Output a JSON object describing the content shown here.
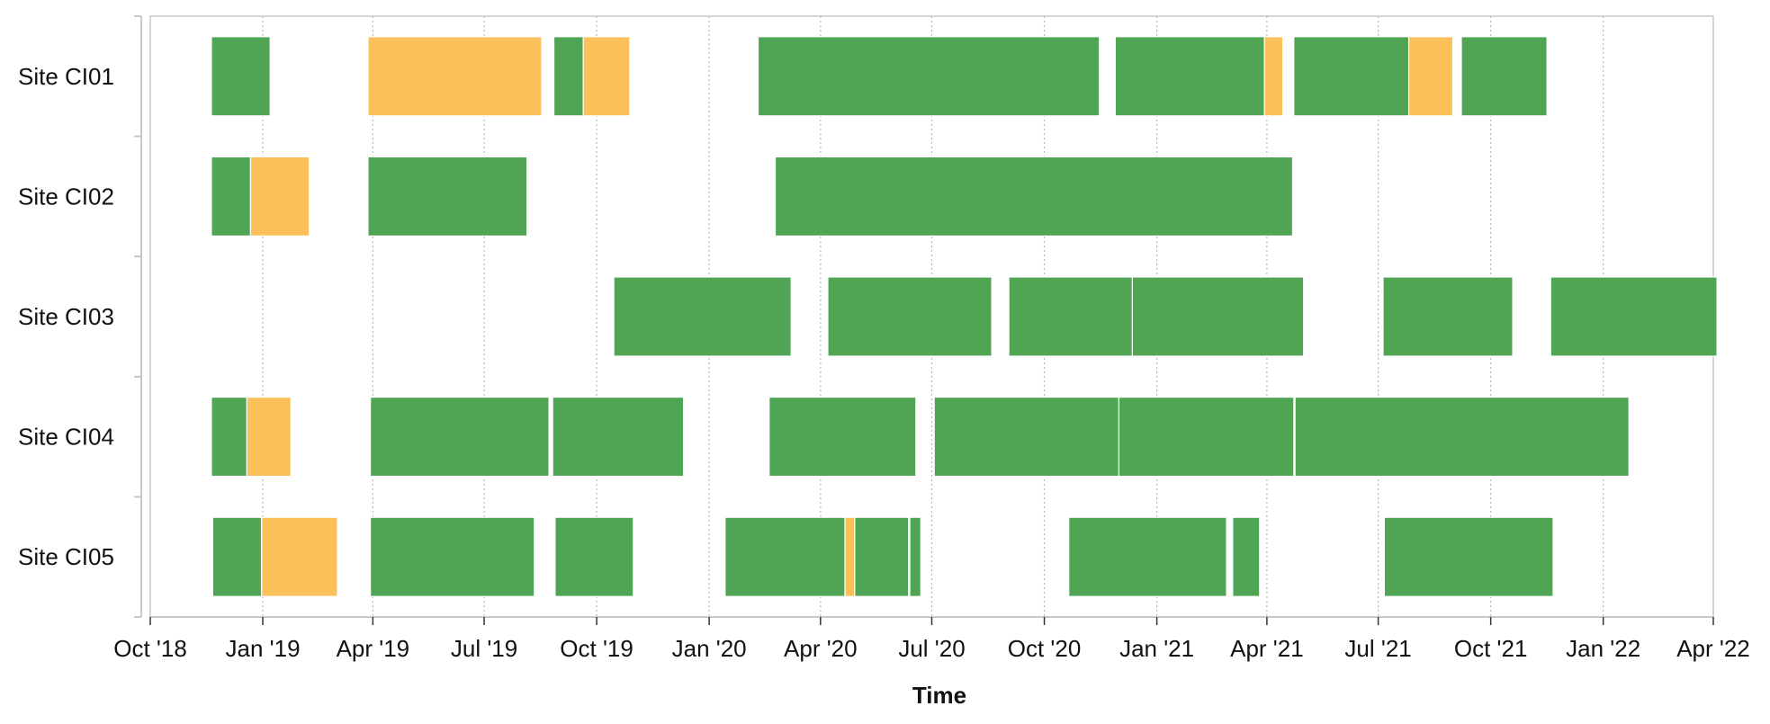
{
  "chart_data": {
    "type": "bar",
    "orientation": "horizontal",
    "subtype": "timeline",
    "title": "",
    "xlabel": "Time",
    "ylabel": "",
    "categories": [
      "Site CI01",
      "Site CI02",
      "Site CI03",
      "Site CI04",
      "Site CI05"
    ],
    "x_ticks": [
      "2018-10-01",
      "2019-01-01",
      "2019-04-01",
      "2019-07-01",
      "2019-10-01",
      "2020-01-01",
      "2020-04-01",
      "2020-07-01",
      "2020-10-01",
      "2021-01-01",
      "2021-04-01",
      "2021-07-01",
      "2021-10-01",
      "2022-01-01",
      "2022-04-01"
    ],
    "x_tick_labels": [
      "Oct '18",
      "Jan '19",
      "Apr '19",
      "Jul '19",
      "Oct '19",
      "Jan '20",
      "Apr '20",
      "Jul '20",
      "Oct '20",
      "Jan '21",
      "Apr '21",
      "Jul '21",
      "Oct '21",
      "Jan '22",
      "Apr '22"
    ],
    "xlim": [
      "2018-10-01",
      "2022-04-01"
    ],
    "grid": "vertical dotted",
    "legend": "none",
    "colors": {
      "green": "#4fa553",
      "orange": "#fcc05a",
      "axis": "#c8c8c8",
      "grid": "#b9b9b9"
    },
    "segments": [
      {
        "site": "Site CI01",
        "start": "2018-11-20",
        "end": "2019-01-07",
        "color": "green"
      },
      {
        "site": "Site CI01",
        "start": "2019-03-28",
        "end": "2019-08-17",
        "color": "orange"
      },
      {
        "site": "Site CI01",
        "start": "2019-08-27",
        "end": "2019-09-20",
        "color": "green"
      },
      {
        "site": "Site CI01",
        "start": "2019-09-20",
        "end": "2019-10-28",
        "color": "orange"
      },
      {
        "site": "Site CI01",
        "start": "2020-02-10",
        "end": "2020-11-15",
        "color": "green"
      },
      {
        "site": "Site CI01",
        "start": "2020-11-28",
        "end": "2021-03-30",
        "color": "green"
      },
      {
        "site": "Site CI01",
        "start": "2021-03-30",
        "end": "2021-04-14",
        "color": "orange"
      },
      {
        "site": "Site CI01",
        "start": "2021-04-23",
        "end": "2021-07-26",
        "color": "green"
      },
      {
        "site": "Site CI01",
        "start": "2021-07-26",
        "end": "2021-08-31",
        "color": "orange"
      },
      {
        "site": "Site CI01",
        "start": "2021-09-07",
        "end": "2021-11-16",
        "color": "green"
      },
      {
        "site": "Site CI02",
        "start": "2018-11-20",
        "end": "2018-12-22",
        "color": "green"
      },
      {
        "site": "Site CI02",
        "start": "2018-12-22",
        "end": "2019-02-08",
        "color": "orange"
      },
      {
        "site": "Site CI02",
        "start": "2019-03-28",
        "end": "2019-08-05",
        "color": "green"
      },
      {
        "site": "Site CI02",
        "start": "2020-02-24",
        "end": "2021-04-22",
        "color": "green"
      },
      {
        "site": "Site CI03",
        "start": "2019-10-15",
        "end": "2020-03-08",
        "color": "green"
      },
      {
        "site": "Site CI03",
        "start": "2020-04-07",
        "end": "2020-08-19",
        "color": "green"
      },
      {
        "site": "Site CI03",
        "start": "2020-09-02",
        "end": "2020-12-12",
        "color": "green"
      },
      {
        "site": "Site CI03",
        "start": "2020-12-12",
        "end": "2021-05-01",
        "color": "green"
      },
      {
        "site": "Site CI03",
        "start": "2021-07-05",
        "end": "2021-10-19",
        "color": "green"
      },
      {
        "site": "Site CI03",
        "start": "2021-11-19",
        "end": "2022-04-04",
        "color": "green"
      },
      {
        "site": "Site CI04",
        "start": "2018-11-20",
        "end": "2018-12-19",
        "color": "green"
      },
      {
        "site": "Site CI04",
        "start": "2018-12-19",
        "end": "2019-01-24",
        "color": "orange"
      },
      {
        "site": "Site CI04",
        "start": "2019-03-30",
        "end": "2019-08-23",
        "color": "green"
      },
      {
        "site": "Site CI04",
        "start": "2019-08-26",
        "end": "2019-12-11",
        "color": "green"
      },
      {
        "site": "Site CI04",
        "start": "2020-02-19",
        "end": "2020-06-18",
        "color": "green"
      },
      {
        "site": "Site CI04",
        "start": "2020-07-03",
        "end": "2020-12-01",
        "color": "green"
      },
      {
        "site": "Site CI04",
        "start": "2020-12-01",
        "end": "2021-04-23",
        "color": "green"
      },
      {
        "site": "Site CI04",
        "start": "2021-04-24",
        "end": "2022-01-22",
        "color": "green"
      },
      {
        "site": "Site CI05",
        "start": "2018-11-21",
        "end": "2018-12-31",
        "color": "green"
      },
      {
        "site": "Site CI05",
        "start": "2018-12-31",
        "end": "2019-03-03",
        "color": "orange"
      },
      {
        "site": "Site CI05",
        "start": "2019-03-30",
        "end": "2019-08-11",
        "color": "green"
      },
      {
        "site": "Site CI05",
        "start": "2019-08-28",
        "end": "2019-10-31",
        "color": "green"
      },
      {
        "site": "Site CI05",
        "start": "2020-01-14",
        "end": "2020-04-21",
        "color": "green"
      },
      {
        "site": "Site CI05",
        "start": "2020-04-21",
        "end": "2020-04-29",
        "color": "orange"
      },
      {
        "site": "Site CI05",
        "start": "2020-04-29",
        "end": "2020-06-12",
        "color": "green"
      },
      {
        "site": "Site CI05",
        "start": "2020-06-13",
        "end": "2020-06-22",
        "color": "green"
      },
      {
        "site": "Site CI05",
        "start": "2020-10-21",
        "end": "2021-02-27",
        "color": "green"
      },
      {
        "site": "Site CI05",
        "start": "2021-03-04",
        "end": "2021-03-26",
        "color": "green"
      },
      {
        "site": "Site CI05",
        "start": "2021-07-06",
        "end": "2021-11-21",
        "color": "green"
      }
    ]
  }
}
